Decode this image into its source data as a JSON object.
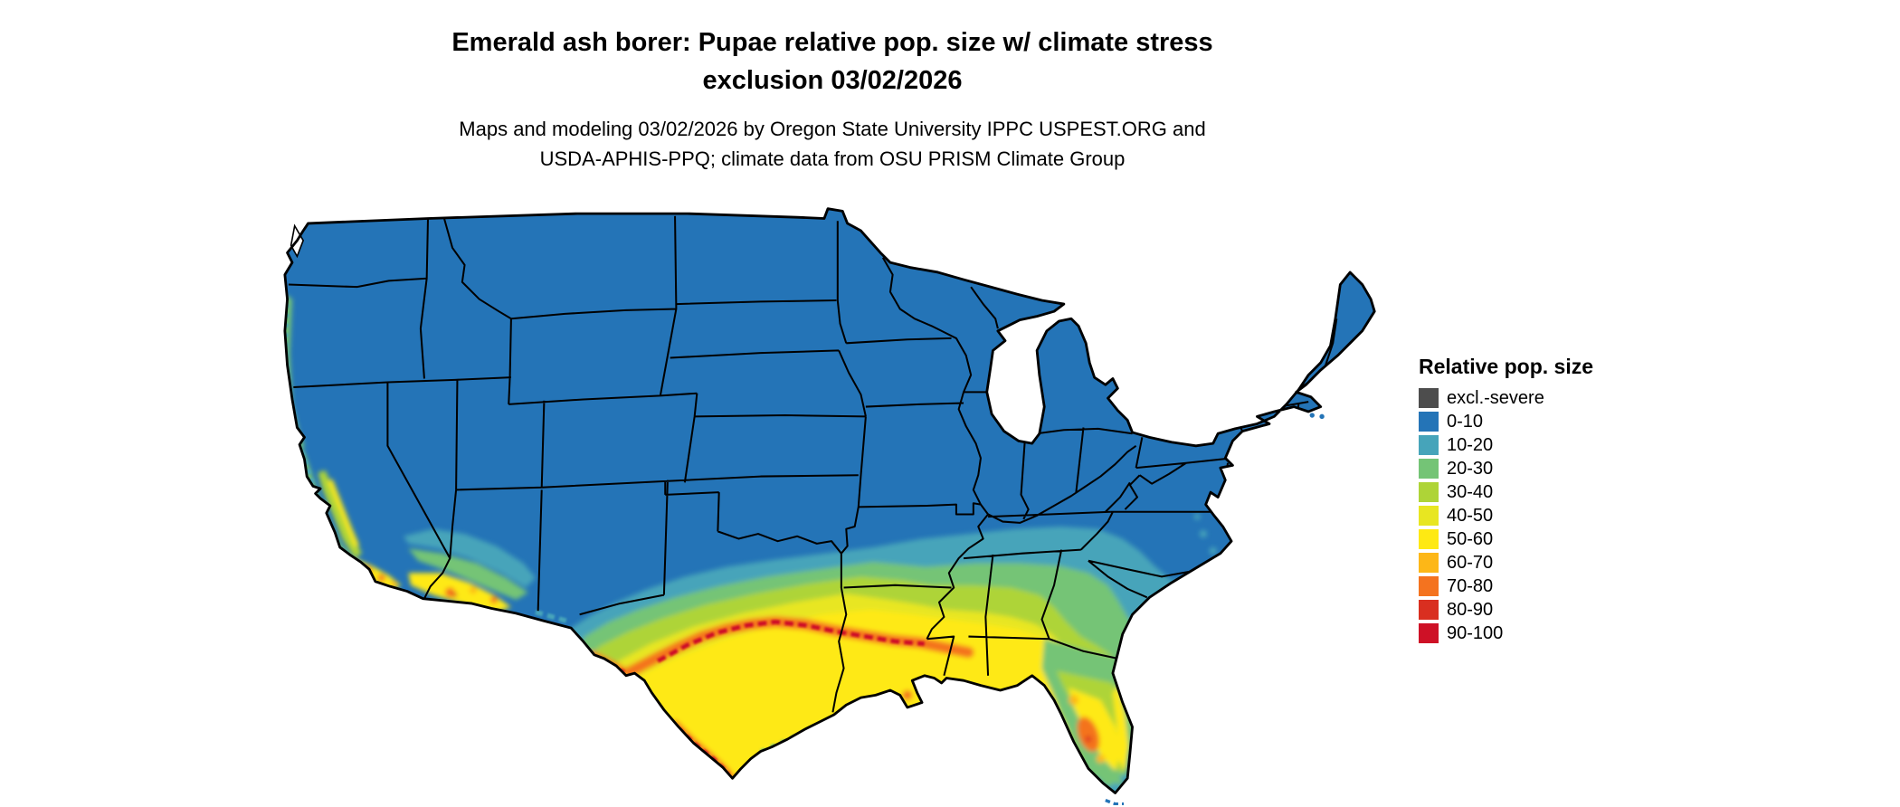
{
  "title": {
    "line1": "Emerald ash borer: Pupae relative pop. size w/ climate stress",
    "line2": "exclusion 03/02/2026"
  },
  "subtitle": {
    "line1": "Maps and modeling 03/02/2026 by Oregon State University IPPC USPEST.ORG and",
    "line2": "USDA-APHIS-PPQ; climate data from OSU PRISM Climate Group"
  },
  "legend": {
    "title": "Relative pop. size",
    "items": [
      {
        "label": "excl.-severe",
        "color": "#4d4d4d"
      },
      {
        "label": "0-10",
        "color": "#2474b7"
      },
      {
        "label": "10-20",
        "color": "#46a4ba"
      },
      {
        "label": "20-30",
        "color": "#74c476"
      },
      {
        "label": "30-40",
        "color": "#aed437"
      },
      {
        "label": "40-50",
        "color": "#e8e621"
      },
      {
        "label": "50-60",
        "color": "#fee913"
      },
      {
        "label": "60-70",
        "color": "#fdb717"
      },
      {
        "label": "70-80",
        "color": "#f4731f"
      },
      {
        "label": "80-90",
        "color": "#d92f20"
      },
      {
        "label": "90-100",
        "color": "#ce1126"
      }
    ]
  },
  "map": {
    "base_color": "#2474b7",
    "border_color": "#000000",
    "background": "#ffffff"
  }
}
